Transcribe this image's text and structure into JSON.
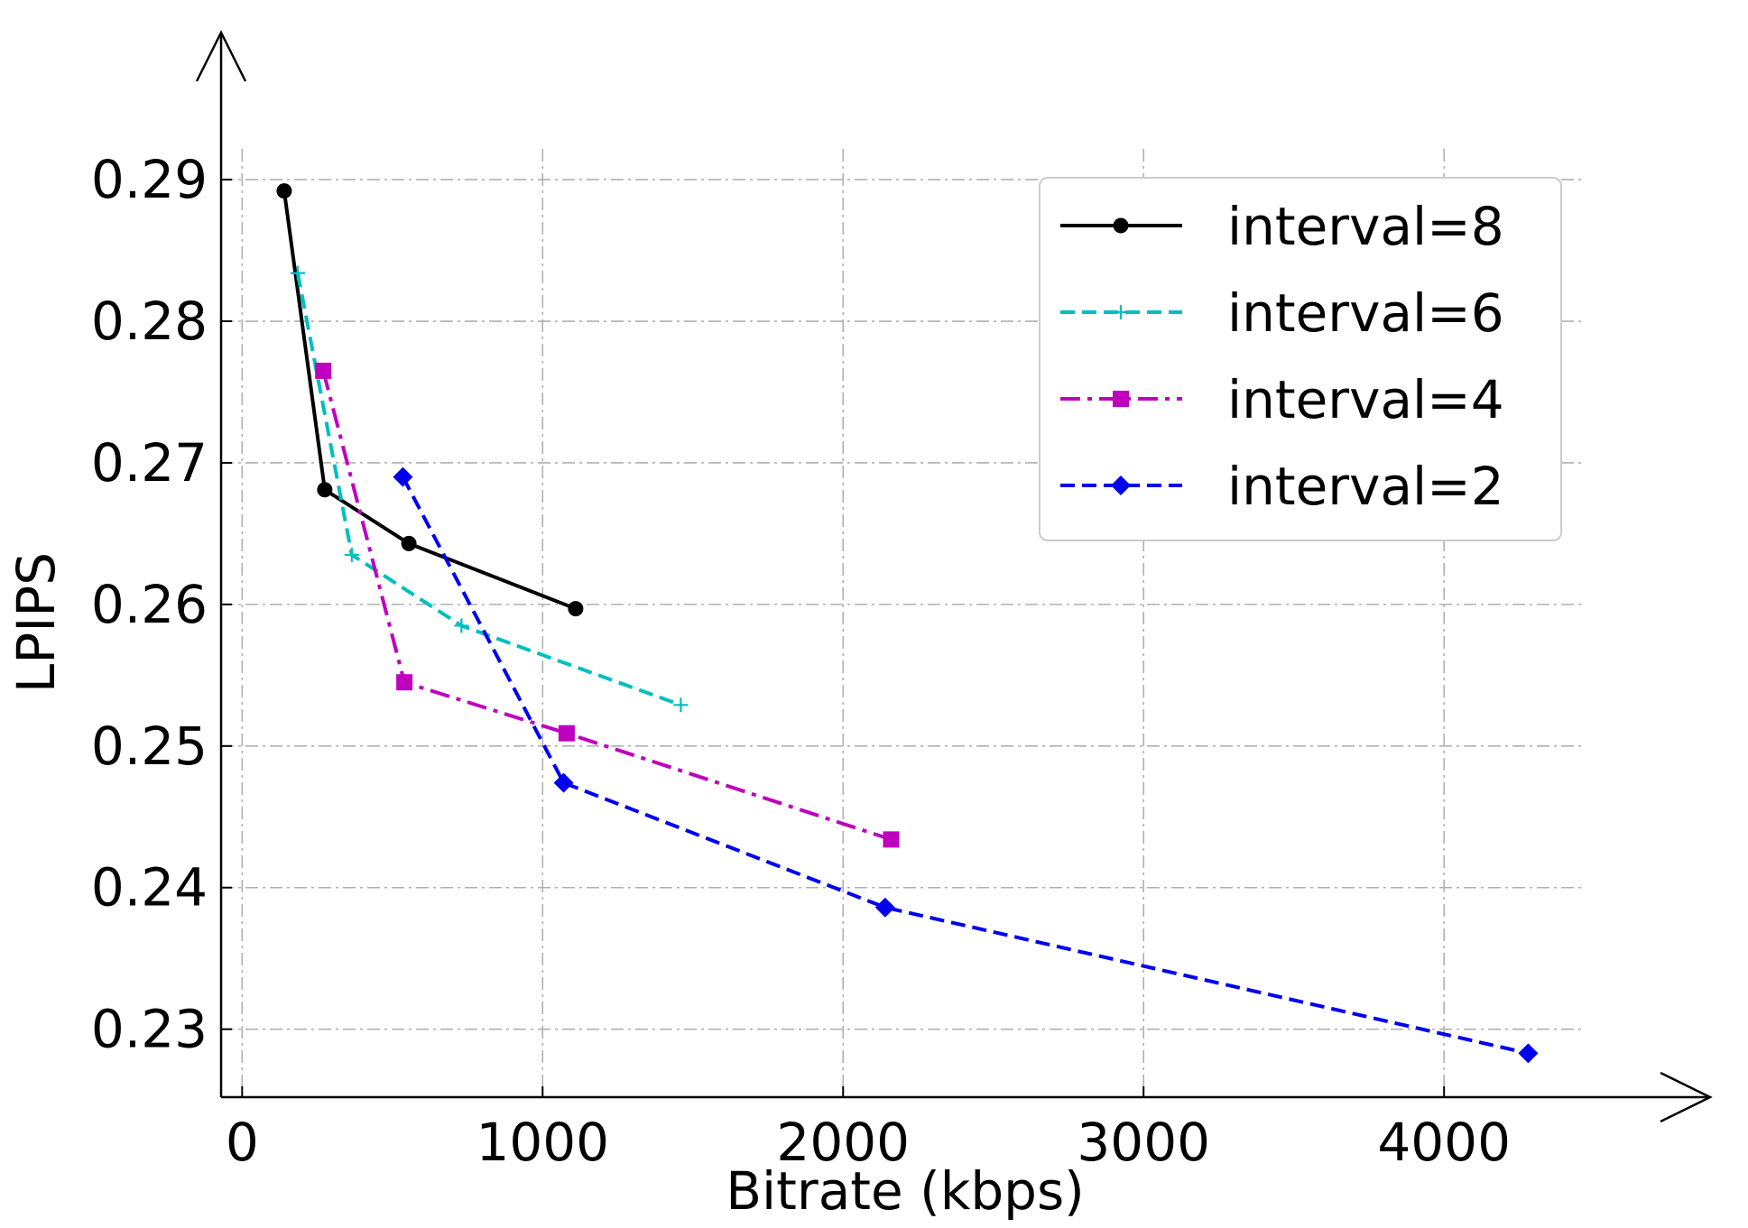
{
  "chart_data": {
    "type": "line",
    "title": "",
    "xlabel": "Bitrate (kbps)",
    "ylabel": "LPIPS",
    "xlim": [
      -70,
      4480
    ],
    "ylim": [
      0.2252,
      0.2995
    ],
    "xticks": [
      0,
      1000,
      2000,
      3000,
      4000
    ],
    "xtick_labels": [
      "0",
      "1000",
      "2000",
      "3000",
      "4000"
    ],
    "yticks": [
      0.23,
      0.24,
      0.25,
      0.26,
      0.27,
      0.28,
      0.29
    ],
    "ytick_labels": [
      "0.23",
      "0.24",
      "0.25",
      "0.26",
      "0.27",
      "0.28",
      "0.29"
    ],
    "grid": true,
    "legend_position": "top-right",
    "series": [
      {
        "name": "interval=8",
        "color": "#000000",
        "line_style": "solid",
        "marker": "circle",
        "x": [
          140,
          275,
          555,
          1110
        ],
        "y": [
          0.2892,
          0.2681,
          0.2643,
          0.2597
        ]
      },
      {
        "name": "interval=6",
        "color": "#00bfbf",
        "line_style": "dashed",
        "marker": "plus",
        "x": [
          185,
          365,
          730,
          1460
        ],
        "y": [
          0.2834,
          0.2635,
          0.2585,
          0.2529
        ]
      },
      {
        "name": "interval=4",
        "color": "#bf00bf",
        "line_style": "dashdot",
        "marker": "square",
        "x": [
          270,
          540,
          1080,
          2160
        ],
        "y": [
          0.2765,
          0.2545,
          0.2509,
          0.2434
        ]
      },
      {
        "name": "interval=2",
        "color": "#0000ee",
        "line_style": "dashed",
        "marker": "diamond",
        "x": [
          535,
          1070,
          2140,
          4280
        ],
        "y": [
          0.269,
          0.2474,
          0.2386,
          0.2283
        ]
      }
    ]
  }
}
